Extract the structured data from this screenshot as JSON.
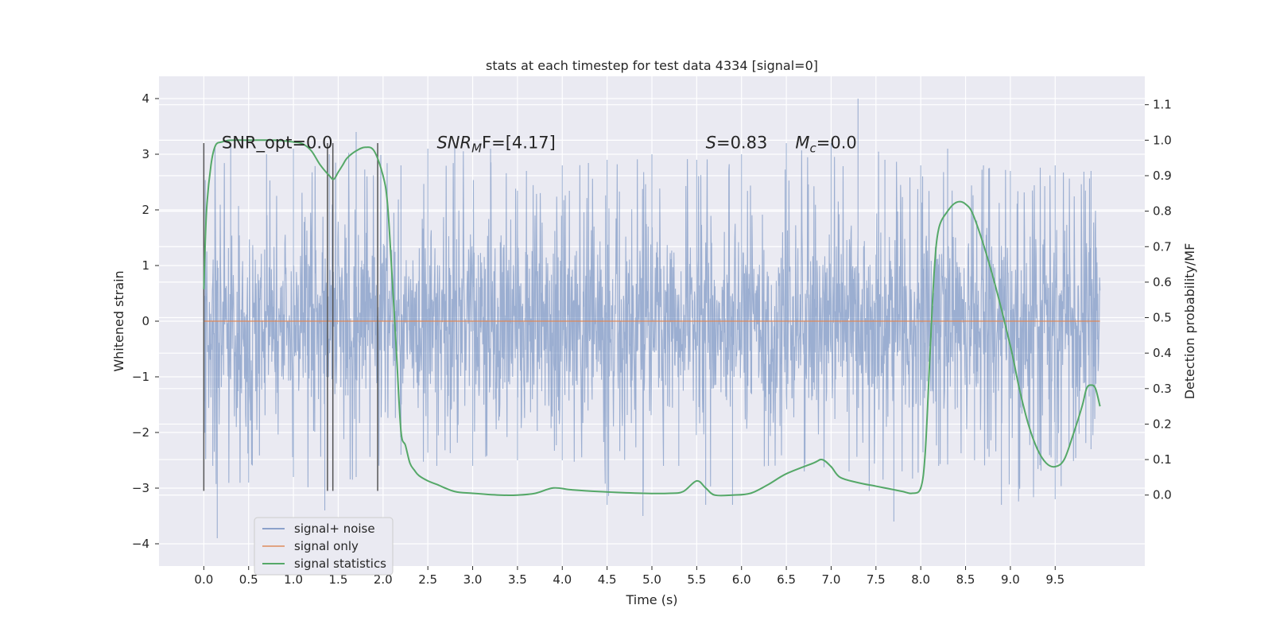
{
  "chart_data": {
    "type": "line",
    "title": "stats at each timestep for test data 4334 [signal=0]",
    "xlabel": "Time (s)",
    "ylabel_left": "Whitened strain",
    "ylabel_right": "Detection probability/MF",
    "xlim": [
      -0.5,
      10.5
    ],
    "ylim_left": [
      -4.4,
      4.4
    ],
    "ylim_right": [
      -0.2,
      1.18
    ],
    "x_ticks": [
      0.0,
      0.5,
      1.0,
      1.5,
      2.0,
      2.5,
      3.0,
      3.5,
      4.0,
      4.5,
      5.0,
      5.5,
      6.0,
      6.5,
      7.0,
      7.5,
      8.0,
      8.5,
      9.0,
      9.5
    ],
    "x_tick_labels": [
      "0.0",
      "0.5",
      "1.0",
      "1.5",
      "2.0",
      "2.5",
      "3.0",
      "3.5",
      "4.0",
      "4.5",
      "5.0",
      "5.5",
      "6.0",
      "6.5",
      "7.0",
      "7.5",
      "8.0",
      "8.5",
      "9.0",
      "9.5"
    ],
    "y_left_ticks": [
      4,
      3,
      2,
      1,
      0,
      -1,
      -2,
      -3,
      -4
    ],
    "y_left_tick_labels": [
      "4",
      "3",
      "2",
      "1",
      "0",
      "−1",
      "−2",
      "−3",
      "−4"
    ],
    "y_right_ticks": [
      1.1,
      1.0,
      0.9,
      0.8,
      0.7,
      0.6,
      0.5,
      0.4,
      0.3,
      0.2,
      0.1,
      0.0
    ],
    "y_right_tick_labels": [
      "1.1",
      "1.0",
      "0.9",
      "0.8",
      "0.7",
      "0.6",
      "0.5",
      "0.4",
      "0.3",
      "0.2",
      "0.1",
      "0.0"
    ],
    "grid": true,
    "legend_position": "lower-left",
    "colors": {
      "background": "#eaeaf2",
      "grid": "#ffffff",
      "noise": "#4c72b0",
      "signal_only": "#dd8452",
      "statistics": "#55a868",
      "vlines": "#555555"
    },
    "series": [
      {
        "name": "signal+ noise",
        "axis": "left",
        "style": "dense-noise",
        "x_range": [
          0.0,
          10.0
        ],
        "envelope_core": [
          -1.3,
          1.3
        ],
        "peaks_max": [
          [
            0.3,
            3.2
          ],
          [
            0.7,
            3.0
          ],
          [
            1.0,
            3.1
          ],
          [
            1.4,
            3.0
          ],
          [
            1.7,
            3.4
          ],
          [
            2.2,
            2.8
          ],
          [
            2.5,
            3.1
          ],
          [
            2.8,
            3.2
          ],
          [
            3.2,
            3.1
          ],
          [
            3.6,
            2.7
          ],
          [
            4.0,
            2.8
          ],
          [
            4.5,
            2.9
          ],
          [
            5.0,
            3.0
          ],
          [
            5.5,
            2.9
          ],
          [
            6.0,
            3.0
          ],
          [
            6.5,
            3.2
          ],
          [
            7.0,
            3.2
          ],
          [
            7.3,
            4.0
          ],
          [
            7.6,
            2.9
          ],
          [
            8.0,
            2.8
          ],
          [
            8.3,
            3.1
          ],
          [
            8.7,
            2.8
          ],
          [
            9.0,
            2.7
          ],
          [
            9.5,
            2.8
          ],
          [
            9.9,
            2.7
          ]
        ],
        "peaks_min": [
          [
            0.1,
            -2.6
          ],
          [
            0.15,
            -3.9
          ],
          [
            0.5,
            -2.9
          ],
          [
            1.0,
            -2.8
          ],
          [
            1.35,
            -3.4
          ],
          [
            1.7,
            -2.8
          ],
          [
            2.2,
            -2.4
          ],
          [
            2.6,
            -2.6
          ],
          [
            3.0,
            -2.6
          ],
          [
            3.5,
            -2.5
          ],
          [
            4.0,
            -2.5
          ],
          [
            4.5,
            -3.3
          ],
          [
            4.9,
            -3.5
          ],
          [
            5.3,
            -2.6
          ],
          [
            5.6,
            -3.3
          ],
          [
            5.9,
            -3.3
          ],
          [
            6.3,
            -2.6
          ],
          [
            6.7,
            -2.7
          ],
          [
            7.2,
            -2.7
          ],
          [
            7.7,
            -3.6
          ],
          [
            8.2,
            -2.6
          ],
          [
            8.6,
            -2.5
          ],
          [
            8.9,
            -3.3
          ],
          [
            9.5,
            -3.2
          ],
          [
            9.9,
            -2.3
          ]
        ]
      },
      {
        "name": "signal only",
        "axis": "left",
        "x": [
          0.0,
          10.0
        ],
        "y": [
          0.0,
          0.0
        ]
      },
      {
        "name": "signal statistics",
        "axis": "right",
        "x": [
          0.0,
          0.03,
          0.08,
          0.13,
          0.2,
          0.3,
          0.5,
          0.8,
          1.0,
          1.1,
          1.2,
          1.3,
          1.4,
          1.45,
          1.5,
          1.55,
          1.6,
          1.7,
          1.8,
          1.9,
          2.0,
          2.05,
          2.1,
          2.15,
          2.2,
          2.25,
          2.3,
          2.35,
          2.4,
          2.5,
          2.6,
          2.8,
          3.0,
          3.3,
          3.5,
          3.7,
          3.9,
          4.1,
          4.4,
          4.9,
          5.2,
          5.35,
          5.5,
          5.6,
          5.7,
          5.9,
          6.1,
          6.3,
          6.5,
          6.8,
          6.9,
          7.0,
          7.1,
          7.3,
          7.5,
          7.7,
          7.8,
          7.9,
          8.0,
          8.05,
          8.1,
          8.15,
          8.2,
          8.3,
          8.4,
          8.5,
          8.6,
          8.8,
          9.0,
          9.1,
          9.2,
          9.3,
          9.4,
          9.5,
          9.6,
          9.7,
          9.8,
          9.85,
          9.9,
          9.95,
          10.0
        ],
        "y": [
          0.58,
          0.8,
          0.93,
          0.985,
          0.995,
          1.0,
          1.0,
          1.0,
          0.995,
          0.99,
          0.97,
          0.93,
          0.9,
          0.89,
          0.91,
          0.93,
          0.95,
          0.97,
          0.98,
          0.97,
          0.9,
          0.82,
          0.62,
          0.4,
          0.18,
          0.14,
          0.09,
          0.07,
          0.055,
          0.04,
          0.03,
          0.01,
          0.005,
          0.0,
          0.0,
          0.005,
          0.02,
          0.015,
          0.01,
          0.005,
          0.005,
          0.01,
          0.04,
          0.02,
          0.0,
          0.0,
          0.005,
          0.03,
          0.06,
          0.09,
          0.1,
          0.08,
          0.05,
          0.035,
          0.025,
          0.015,
          0.01,
          0.005,
          0.02,
          0.12,
          0.38,
          0.63,
          0.75,
          0.8,
          0.825,
          0.82,
          0.78,
          0.62,
          0.42,
          0.3,
          0.2,
          0.13,
          0.09,
          0.08,
          0.1,
          0.17,
          0.25,
          0.3,
          0.31,
          0.3,
          0.25
        ]
      }
    ],
    "vertical_lines": {
      "x": [
        0.0,
        1.38,
        1.44,
        1.94
      ],
      "y_range": [
        -3.05,
        3.2
      ]
    },
    "annotations": [
      {
        "x": 0.2,
        "y": 3.22,
        "base": "SNR_opt=0.0"
      },
      {
        "x": 2.6,
        "y": 3.22,
        "base": "SNR",
        "sub": "M",
        "rest": "F=[4.17]"
      },
      {
        "x": 5.6,
        "y": 3.22,
        "base": "S",
        "rest": "=0.83"
      },
      {
        "x": 6.6,
        "y": 3.22,
        "base": "M",
        "sub": "c",
        "rest": "=0.0"
      }
    ]
  }
}
